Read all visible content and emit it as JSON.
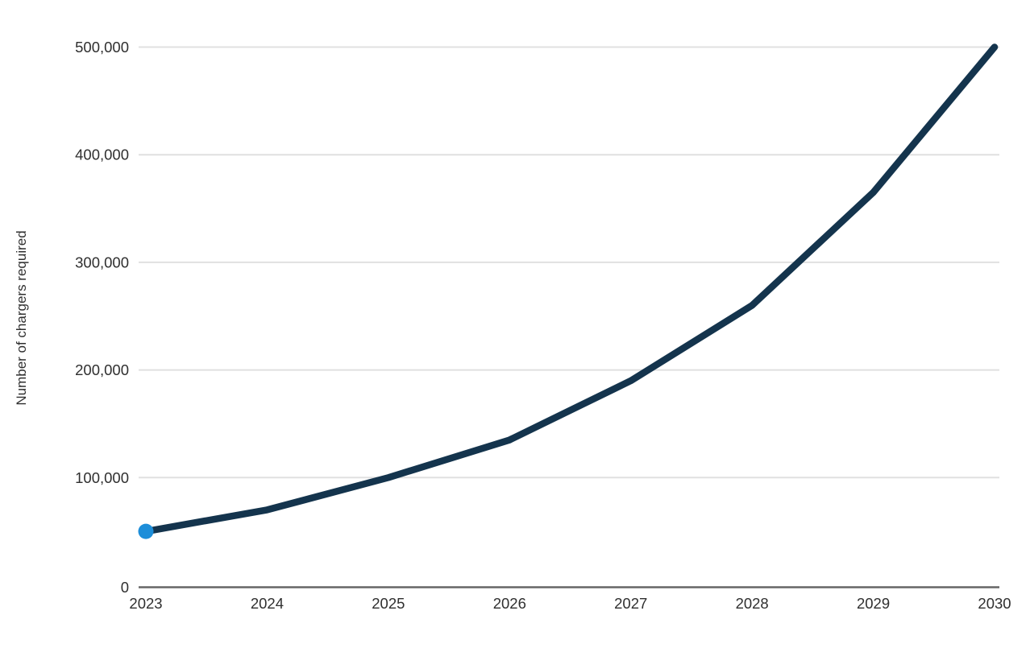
{
  "chart_data": {
    "type": "line",
    "title": "",
    "xlabel": "",
    "ylabel": "Number of chargers required",
    "categories": [
      "2023",
      "2024",
      "2025",
      "2026",
      "2027",
      "2028",
      "2029",
      "2030"
    ],
    "series": [
      {
        "name": "Number of chargers required",
        "values": [
          50000,
          70000,
          100000,
          135000,
          190000,
          260000,
          365000,
          500000
        ]
      }
    ],
    "ylim": [
      0,
      500000
    ],
    "y_ticks": [
      {
        "value": 0,
        "label": "0"
      },
      {
        "value": 100000,
        "label": "100,000"
      },
      {
        "value": 200000,
        "label": "200,000"
      },
      {
        "value": 300000,
        "label": "300,000"
      },
      {
        "value": 400000,
        "label": "400,000"
      },
      {
        "value": 500000,
        "label": "500,000"
      }
    ],
    "grid": "horizontal-only",
    "legend": "none",
    "marker": {
      "position": "first-point",
      "shape": "circle"
    },
    "colors": {
      "line": "#14344d",
      "marker": "#1d8ed9",
      "gridline": "#e0e0e0",
      "axis_line": "#666666",
      "tick_text": "#2f2f2f",
      "axis_title_text": "#2f2f2f",
      "background": "#ffffff"
    }
  }
}
